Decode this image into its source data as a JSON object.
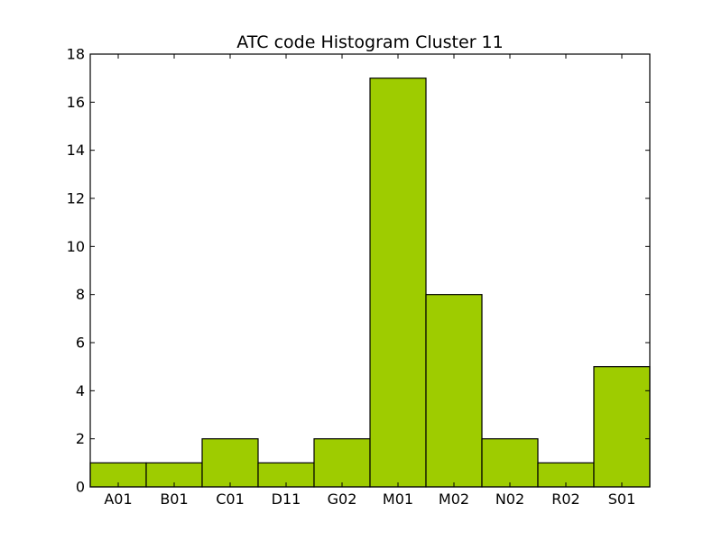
{
  "chart_data": {
    "type": "bar",
    "title": "ATC code Histogram Cluster 11",
    "xlabel": "",
    "ylabel": "",
    "categories": [
      "A01",
      "B01",
      "C01",
      "D11",
      "G02",
      "M01",
      "M02",
      "N02",
      "R02",
      "S01"
    ],
    "values": [
      1,
      1,
      2,
      1,
      2,
      17,
      8,
      2,
      1,
      5
    ],
    "ylim": [
      0,
      18
    ],
    "yticks": [
      0,
      2,
      4,
      6,
      8,
      10,
      12,
      14,
      16,
      18
    ],
    "bar_color": "#9ecc00",
    "grid": false,
    "legend": "none"
  }
}
